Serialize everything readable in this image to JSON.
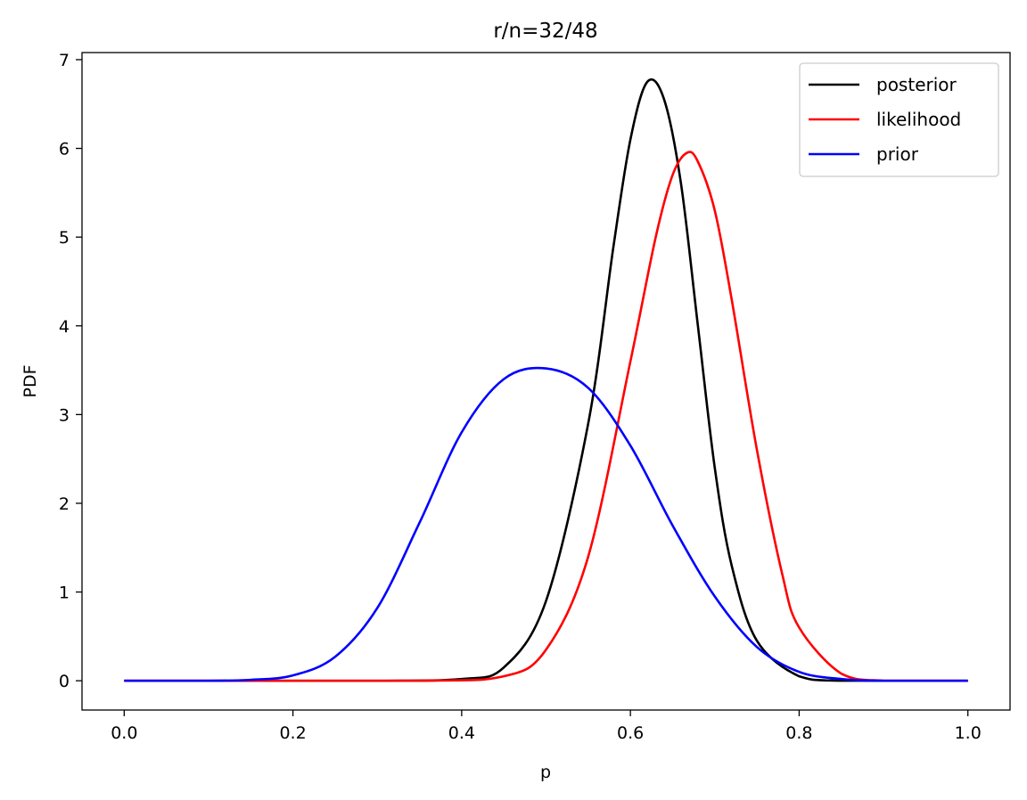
{
  "chart_data": {
    "type": "line",
    "title": "r/n=32/48",
    "xlabel": "p",
    "ylabel": "PDF",
    "xlim": [
      -0.05,
      1.05
    ],
    "ylim": [
      -0.33,
      7.08
    ],
    "xticks": [
      0.0,
      0.2,
      0.4,
      0.6,
      0.8,
      1.0
    ],
    "xtick_labels": [
      "0.0",
      "0.2",
      "0.4",
      "0.6",
      "0.8",
      "1.0"
    ],
    "yticks": [
      0,
      1,
      2,
      3,
      4,
      5,
      6,
      7
    ],
    "ytick_labels": [
      "0",
      "1",
      "2",
      "3",
      "4",
      "5",
      "6",
      "7"
    ],
    "grid": false,
    "legend_position": "top-right",
    "series": [
      {
        "name": "posterior",
        "color": "#000000",
        "x": [
          0.0,
          0.3,
          0.4,
          0.45,
          0.5,
          0.55,
          0.58,
          0.6,
          0.62,
          0.64,
          0.66,
          0.68,
          0.7,
          0.72,
          0.75,
          0.8,
          0.85,
          1.0
        ],
        "y": [
          0.0,
          0.0,
          0.02,
          0.15,
          0.9,
          2.9,
          4.9,
          6.1,
          6.75,
          6.55,
          5.6,
          4.0,
          2.4,
          1.3,
          0.45,
          0.05,
          0.0,
          0.0
        ]
      },
      {
        "name": "likelihood",
        "color": "#ff0000",
        "x": [
          0.0,
          0.35,
          0.45,
          0.5,
          0.55,
          0.6,
          0.63,
          0.65,
          0.667,
          0.68,
          0.7,
          0.72,
          0.75,
          0.78,
          0.8,
          0.85,
          0.9,
          1.0
        ],
        "y": [
          0.0,
          0.0,
          0.05,
          0.35,
          1.4,
          3.6,
          5.0,
          5.7,
          5.95,
          5.85,
          5.3,
          4.3,
          2.6,
          1.2,
          0.6,
          0.08,
          0.0,
          0.0
        ]
      },
      {
        "name": "prior",
        "color": "#0000ff",
        "x": [
          0.0,
          0.1,
          0.15,
          0.2,
          0.25,
          0.3,
          0.35,
          0.4,
          0.45,
          0.5,
          0.55,
          0.6,
          0.65,
          0.7,
          0.75,
          0.8,
          0.85,
          0.9,
          1.0
        ],
        "y": [
          0.0,
          0.0,
          0.01,
          0.06,
          0.27,
          0.82,
          1.78,
          2.8,
          3.4,
          3.52,
          3.3,
          2.65,
          1.75,
          0.95,
          0.38,
          0.1,
          0.02,
          0.0,
          0.0
        ]
      }
    ]
  }
}
